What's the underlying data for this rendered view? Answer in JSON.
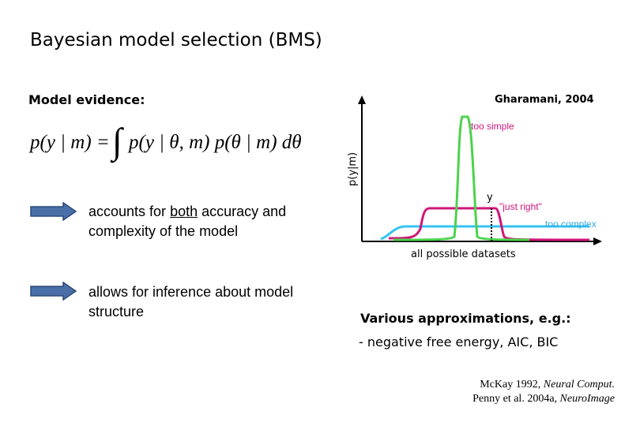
{
  "title": "Bayesian model selection (BMS)",
  "evidence_label": "Model evidence:",
  "formula": {
    "lhs": "p(y | m) =",
    "integrand": "p(y | θ, m) p(θ | m) dθ"
  },
  "bullets": [
    {
      "pre": "accounts for ",
      "emph": "both",
      "post": " accuracy and complexity of the model"
    },
    {
      "pre": "allows for inference about model structure",
      "emph": "",
      "post": ""
    }
  ],
  "plot": {
    "citation": "Gharamani, 2004",
    "y_axis_label": "p(y|m)",
    "x_axis_label": "all possible datasets",
    "y_marker": "y",
    "curves": [
      {
        "label": "too simple",
        "color": "#4cd24c"
      },
      {
        "label": "\"just right\"",
        "color": "#d0157a"
      },
      {
        "label": "too complex",
        "color": "#33c4f0"
      }
    ]
  },
  "approximations": {
    "heading": "Various approximations, e.g.:",
    "item": "- negative free energy, AIC, BIC"
  },
  "references": [
    {
      "authors": "McKay 1992, ",
      "journal": "Neural Comput."
    },
    {
      "authors": "Penny et al. 2004a, ",
      "journal": "NeuroImage"
    }
  ],
  "colors": {
    "arrow_fill": "#4a6fa8",
    "arrow_stroke": "#2a4a7c"
  }
}
